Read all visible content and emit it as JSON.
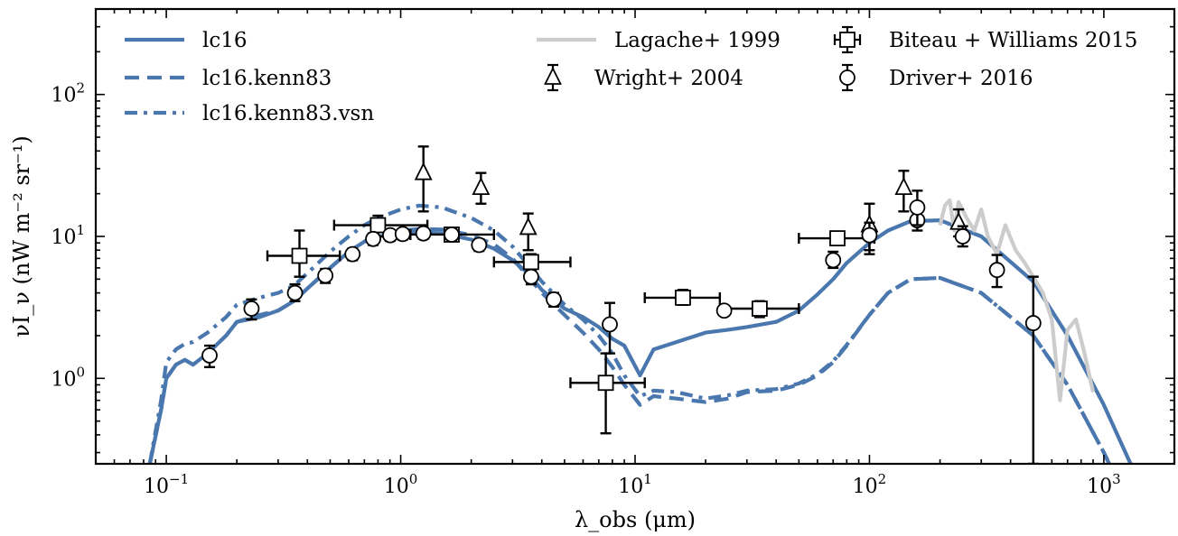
{
  "chart_data": {
    "type": "line",
    "xlabel": "λ_obs (μm)",
    "ylabel": "νI_ν (nW m⁻² sr⁻¹)",
    "xscale": "log",
    "yscale": "log",
    "xlim": [
      0.05,
      2000
    ],
    "ylim": [
      0.25,
      400
    ],
    "x_ticks": [
      {
        "value": 0.1,
        "base": "10",
        "exp": "−1"
      },
      {
        "value": 1,
        "base": "10",
        "exp": "0"
      },
      {
        "value": 10,
        "base": "10",
        "exp": "1"
      },
      {
        "value": 100,
        "base": "10",
        "exp": "2"
      },
      {
        "value": 1000,
        "base": "10",
        "exp": "3"
      }
    ],
    "y_ticks": [
      {
        "value": 1,
        "base": "10",
        "exp": "0"
      },
      {
        "value": 10,
        "base": "10",
        "exp": "1"
      },
      {
        "value": 100,
        "base": "10",
        "exp": "2"
      }
    ],
    "colors": {
      "model": "#4a78ae",
      "lagache": "#cccccc",
      "data": "#000000"
    },
    "series": [
      {
        "name": "lc16",
        "style": "solid",
        "x": [
          0.085,
          0.095,
          0.1,
          0.11,
          0.12,
          0.13,
          0.15,
          0.18,
          0.2,
          0.25,
          0.3,
          0.35,
          0.4,
          0.5,
          0.6,
          0.7,
          0.8,
          1.0,
          1.2,
          1.5,
          2.0,
          2.5,
          3.0,
          3.5,
          4.0,
          5.0,
          6.0,
          7.0,
          8.0,
          9.0,
          10.5,
          12,
          15,
          20,
          25,
          30,
          40,
          50,
          60,
          70,
          80,
          100,
          120,
          150,
          200,
          300,
          500,
          700,
          1000,
          1300
        ],
        "y": [
          0.25,
          0.6,
          1.0,
          1.25,
          1.35,
          1.25,
          1.5,
          2.0,
          2.5,
          2.7,
          3.0,
          3.5,
          4.3,
          6.0,
          7.8,
          9.2,
          10.0,
          10.5,
          10.7,
          10.5,
          9.5,
          8.2,
          6.8,
          5.5,
          4.2,
          3.1,
          2.7,
          2.3,
          1.9,
          1.7,
          1.05,
          1.6,
          1.8,
          2.1,
          2.2,
          2.3,
          2.5,
          3.0,
          3.9,
          5.0,
          6.5,
          9.0,
          11.0,
          12.8,
          13.0,
          10.0,
          4.8,
          2.0,
          0.65,
          0.25
        ]
      },
      {
        "name": "lc16.kenn83",
        "style": "dashed",
        "x": [
          0.085,
          0.095,
          0.1,
          0.11,
          0.12,
          0.13,
          0.15,
          0.18,
          0.2,
          0.25,
          0.3,
          0.35,
          0.4,
          0.5,
          0.6,
          0.7,
          0.8,
          1.0,
          1.2,
          1.5,
          2.0,
          2.5,
          3.0,
          3.5,
          4.0,
          5.0,
          6.0,
          7.0,
          8.0,
          9.0,
          10.5,
          12,
          15,
          20,
          25,
          30,
          40,
          50,
          60,
          70,
          80,
          100,
          120,
          150,
          200,
          300,
          500,
          700,
          1000,
          1300
        ],
        "y": [
          0.25,
          0.6,
          1.0,
          1.25,
          1.35,
          1.25,
          1.5,
          2.0,
          2.5,
          2.8,
          3.0,
          3.5,
          4.3,
          6.0,
          7.8,
          9.2,
          10.2,
          11.0,
          11.3,
          11.2,
          10.2,
          8.8,
          7.0,
          5.2,
          4.0,
          2.8,
          2.1,
          1.6,
          1.2,
          0.9,
          0.65,
          0.75,
          0.72,
          0.68,
          0.72,
          0.8,
          0.82,
          0.9,
          1.05,
          1.3,
          1.7,
          2.8,
          4.0,
          5.0,
          5.1,
          4.0,
          2.0,
          0.9,
          0.3,
          0.12
        ]
      },
      {
        "name": "lc16.kenn83.vsn",
        "style": "dashdot",
        "x": [
          0.085,
          0.095,
          0.1,
          0.11,
          0.12,
          0.13,
          0.15,
          0.18,
          0.2,
          0.25,
          0.3,
          0.35,
          0.4,
          0.5,
          0.6,
          0.7,
          0.8,
          1.0,
          1.2,
          1.5,
          2.0,
          2.5,
          3.0,
          3.5,
          4.0,
          5.0,
          6.0,
          7.0,
          8.0,
          9.0,
          10.5,
          12,
          15,
          20,
          25,
          30,
          40,
          50,
          60,
          70,
          80,
          100,
          120,
          150,
          200,
          300,
          500,
          700,
          1000,
          1300
        ],
        "y": [
          0.25,
          0.7,
          1.3,
          1.6,
          1.75,
          1.8,
          2.1,
          2.7,
          3.3,
          3.7,
          4.0,
          4.5,
          5.5,
          7.8,
          10.0,
          12.0,
          13.5,
          15.5,
          16.5,
          16.0,
          13.5,
          11.0,
          8.5,
          6.3,
          4.8,
          3.3,
          2.6,
          2.0,
          1.5,
          1.05,
          0.75,
          0.82,
          0.8,
          0.72,
          0.76,
          0.82,
          0.84,
          0.92,
          1.07,
          1.32,
          1.72,
          2.8,
          4.0,
          5.0,
          5.1,
          4.0,
          2.0,
          0.9,
          0.3,
          0.12
        ]
      },
      {
        "name": "Lagache+ 1999",
        "style": "solid",
        "x": [
          200,
          210,
          220,
          230,
          240,
          260,
          280,
          300,
          320,
          350,
          380,
          420,
          460,
          500,
          550,
          600,
          650,
          700,
          760,
          820,
          900
        ],
        "y": [
          12.0,
          16.5,
          18.0,
          11.0,
          17.5,
          13.5,
          11.0,
          15.5,
          10.0,
          7.5,
          12.0,
          8.0,
          6.5,
          5.2,
          4.0,
          2.6,
          0.7,
          2.2,
          2.6,
          1.6,
          0.8
        ]
      }
    ],
    "datasets": [
      {
        "name": "Biteau + Williams 2015",
        "marker": "square",
        "points": [
          {
            "x": 0.37,
            "y": 7.3,
            "xerr": [
              0.27,
              0.55
            ],
            "yerr": [
              5.2,
              11.0
            ]
          },
          {
            "x": 0.8,
            "y": 12.0,
            "xerr": [
              0.52,
              1.3
            ],
            "yerr": [
              10.0,
              14.0
            ]
          },
          {
            "x": 1.65,
            "y": 10.3,
            "xerr": [
              1.1,
              2.5
            ],
            "yerr": [
              9.5,
              11.2
            ]
          },
          {
            "x": 3.6,
            "y": 6.6,
            "xerr": [
              2.5,
              5.3
            ],
            "yerr": [
              5.8,
              7.5
            ]
          },
          {
            "x": 7.5,
            "y": 0.93,
            "xerr": [
              5.3,
              11.0
            ],
            "yerr": [
              0.41,
              1.5
            ]
          },
          {
            "x": 16,
            "y": 3.7,
            "xerr": [
              11.0,
              23.0
            ],
            "yerr": [
              3.3,
              4.2
            ]
          },
          {
            "x": 34,
            "y": 3.1,
            "xerr": [
              23.0,
              50.0
            ],
            "yerr": [
              2.7,
              3.5
            ]
          },
          {
            "x": 73,
            "y": 9.7,
            "xerr": [
              50.0,
              105.0
            ],
            "yerr": [
              8.8,
              10.8
            ]
          }
        ]
      },
      {
        "name": "Wright+ 2004",
        "marker": "triangle",
        "points": [
          {
            "x": 1.25,
            "y": 28.0,
            "yerr": [
              15.0,
              43.0
            ]
          },
          {
            "x": 2.2,
            "y": 22.0,
            "yerr": [
              17.0,
              28.0
            ]
          },
          {
            "x": 3.5,
            "y": 11.5,
            "yerr": [
              8.0,
              14.5
            ]
          },
          {
            "x": 100,
            "y": 12.0,
            "yerr": [
              7.5,
              17.0
            ]
          },
          {
            "x": 140,
            "y": 22.0,
            "yerr": [
              15.0,
              29.0
            ]
          },
          {
            "x": 240,
            "y": 12.5,
            "yerr": [
              10.0,
              15.5
            ]
          }
        ]
      },
      {
        "name": "Driver+ 2016",
        "marker": "circle",
        "points": [
          {
            "x": 0.153,
            "y": 1.45,
            "yerr": [
              1.2,
              1.7
            ]
          },
          {
            "x": 0.231,
            "y": 3.1,
            "yerr": [
              2.6,
              3.6
            ]
          },
          {
            "x": 0.354,
            "y": 4.0,
            "yerr": [
              3.5,
              4.6
            ]
          },
          {
            "x": 0.477,
            "y": 5.3,
            "yerr": [
              4.7,
              5.9
            ]
          },
          {
            "x": 0.623,
            "y": 7.5,
            "yerr": [
              6.8,
              8.2
            ]
          },
          {
            "x": 0.763,
            "y": 9.6,
            "yerr": [
              8.7,
              10.5
            ]
          },
          {
            "x": 0.902,
            "y": 10.2,
            "yerr": [
              9.3,
              11.0
            ]
          },
          {
            "x": 1.02,
            "y": 10.4,
            "yerr": [
              9.5,
              11.2
            ]
          },
          {
            "x": 1.25,
            "y": 10.5,
            "yerr": [
              9.6,
              11.4
            ]
          },
          {
            "x": 1.65,
            "y": 10.3,
            "yerr": [
              9.4,
              11.2
            ]
          },
          {
            "x": 2.16,
            "y": 8.7,
            "yerr": [
              7.9,
              9.5
            ]
          },
          {
            "x": 3.6,
            "y": 5.2,
            "yerr": [
              4.6,
              5.8
            ]
          },
          {
            "x": 4.5,
            "y": 3.6,
            "yerr": [
              3.2,
              4.0
            ]
          },
          {
            "x": 7.8,
            "y": 2.4,
            "yerr": [
              1.5,
              3.4
            ]
          },
          {
            "x": 24,
            "y": 3.0,
            "yerr": [
              2.8,
              3.2
            ]
          },
          {
            "x": 70,
            "y": 6.8,
            "yerr": [
              6.0,
              7.8
            ]
          },
          {
            "x": 100,
            "y": 10.2,
            "yerr": [
              8.0,
              12.5
            ]
          },
          {
            "x": 160,
            "y": 13.0,
            "yerr": [
              11.0,
              15.5
            ]
          },
          {
            "x": 160,
            "y": 16.0,
            "yerr": [
              12.0,
              21.0
            ]
          },
          {
            "x": 250,
            "y": 10.0,
            "yerr": [
              8.5,
              11.8
            ]
          },
          {
            "x": 350,
            "y": 5.8,
            "yerr": [
              4.4,
              7.4
            ]
          },
          {
            "x": 500,
            "y": 2.45,
            "yerr": [
              0.25,
              5.2
            ]
          }
        ]
      }
    ],
    "legend": {
      "placement": "top",
      "items": [
        {
          "label": "lc16",
          "kind": "line",
          "style": "solid"
        },
        {
          "label": "lc16.kenn83",
          "kind": "line",
          "style": "dashed"
        },
        {
          "label": "lc16.kenn83.vsn",
          "kind": "line",
          "style": "dashdot"
        },
        {
          "label": "Lagache+ 1999",
          "kind": "line",
          "style": "gray"
        },
        {
          "label": "Wright+ 2004",
          "kind": "marker",
          "style": "triangle"
        },
        {
          "label": "Biteau + Williams 2015",
          "kind": "marker",
          "style": "square"
        },
        {
          "label": "Driver+ 2016",
          "kind": "marker",
          "style": "circle"
        }
      ]
    }
  }
}
